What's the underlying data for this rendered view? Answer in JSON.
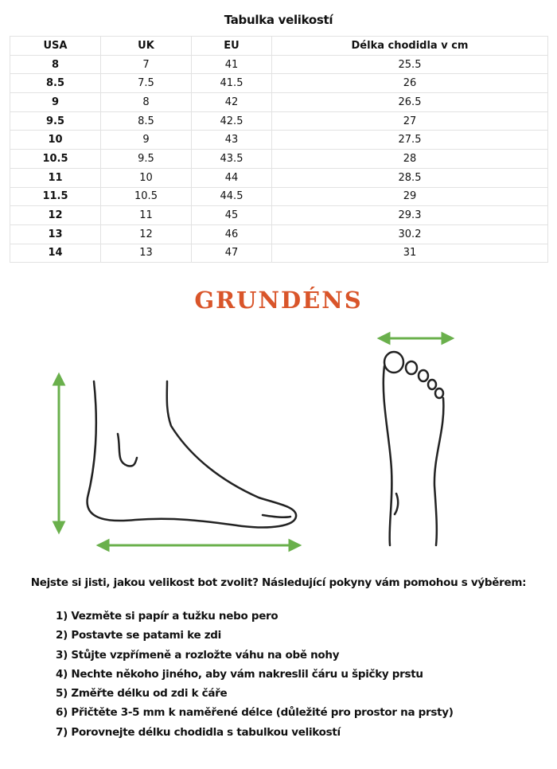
{
  "title": "Tabulka velikostí",
  "table": {
    "headers": [
      "USA",
      "UK",
      "EU",
      "Délka chodidla v cm"
    ],
    "rows": [
      [
        "8",
        "7",
        "41",
        "25.5"
      ],
      [
        "8.5",
        "7.5",
        "41.5",
        "26"
      ],
      [
        "9",
        "8",
        "42",
        "26.5"
      ],
      [
        "9.5",
        "8.5",
        "42.5",
        "27"
      ],
      [
        "10",
        "9",
        "43",
        "27.5"
      ],
      [
        "10.5",
        "9.5",
        "43.5",
        "28"
      ],
      [
        "11",
        "10",
        "44",
        "28.5"
      ],
      [
        "11.5",
        "10.5",
        "44.5",
        "29"
      ],
      [
        "12",
        "11",
        "45",
        "29.3"
      ],
      [
        "13",
        "12",
        "46",
        "30.2"
      ],
      [
        "14",
        "13",
        "47",
        "31"
      ]
    ]
  },
  "brand": {
    "logo": "GRUNDÉNS",
    "color": "#d9552a"
  },
  "arrow_color": "#6ab04c",
  "question": "Nejste si jisti, jakou velikost bot zvolit? Následující pokyny vám pomohou s výběrem:",
  "steps": [
    "1) Vezměte si papír a tužku nebo pero",
    "2) Postavte se patami ke zdi",
    "3) Stůjte vzpřímeně a rozložte váhu na obě nohy",
    "4) Nechte někoho jiného, aby vám nakreslil čáru u špičky prstu",
    "5) Změřte délku od zdi k čáře",
    "6) Přičtěte 3-5 mm k naměřené délce (důležité pro prostor na prsty)",
    "7) Porovnejte délku chodidla s tabulkou velikostí"
  ]
}
